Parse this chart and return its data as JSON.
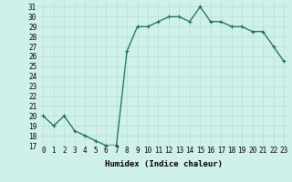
{
  "x": [
    0,
    1,
    2,
    3,
    4,
    5,
    6,
    7,
    8,
    9,
    10,
    11,
    12,
    13,
    14,
    15,
    16,
    17,
    18,
    19,
    20,
    21,
    22,
    23
  ],
  "y": [
    20,
    19,
    20,
    18.5,
    18,
    17.5,
    17,
    17,
    26.5,
    29,
    29,
    29.5,
    30,
    30,
    29.5,
    31,
    29.5,
    29.5,
    29,
    29,
    28.5,
    28.5,
    27,
    25.5
  ],
  "line_color": "#1a6b5a",
  "marker": "+",
  "marker_size": 3,
  "marker_edge_width": 0.8,
  "bg_color": "#cff0eb",
  "grid_color": "#b8ddd8",
  "xlabel": "Humidex (Indice chaleur)",
  "ylim": [
    17,
    31.5
  ],
  "xlim": [
    -0.5,
    23.5
  ],
  "yticks": [
    17,
    18,
    19,
    20,
    21,
    22,
    23,
    24,
    25,
    26,
    27,
    28,
    29,
    30,
    31
  ],
  "xticks": [
    0,
    1,
    2,
    3,
    4,
    5,
    6,
    7,
    8,
    9,
    10,
    11,
    12,
    13,
    14,
    15,
    16,
    17,
    18,
    19,
    20,
    21,
    22,
    23
  ],
  "axis_fontsize": 5.5,
  "label_fontsize": 6.5,
  "line_width": 0.9
}
